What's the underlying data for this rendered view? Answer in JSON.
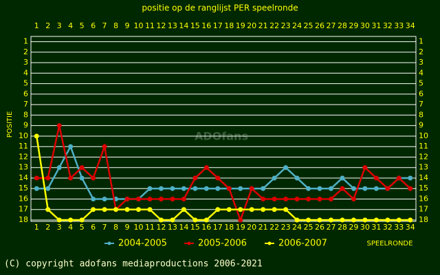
{
  "chart_data": {
    "type": "line",
    "title": "positie op de ranglijst PER speelronde",
    "y_label": "POSITIE",
    "x_label": "SPEELRONDE",
    "watermark": "ADOfans",
    "footer": "(C) copyright adofans mediaproductions 2006-2021",
    "x": [
      1,
      2,
      3,
      4,
      5,
      6,
      7,
      8,
      9,
      10,
      11,
      12,
      13,
      14,
      15,
      16,
      17,
      18,
      19,
      20,
      21,
      22,
      23,
      24,
      25,
      26,
      27,
      28,
      29,
      30,
      31,
      32,
      33,
      34
    ],
    "xlim": [
      0.5,
      34.5
    ],
    "xticks": [
      1,
      2,
      3,
      4,
      5,
      6,
      7,
      8,
      9,
      10,
      11,
      12,
      13,
      14,
      15,
      16,
      17,
      18,
      19,
      20,
      21,
      22,
      23,
      24,
      25,
      26,
      27,
      28,
      29,
      30,
      31,
      32,
      33,
      34
    ],
    "ylim": [
      0.5,
      18
    ],
    "yticks": [
      1,
      2,
      3,
      4,
      5,
      6,
      7,
      8,
      9,
      10,
      11,
      12,
      13,
      14,
      15,
      16,
      17,
      18
    ],
    "y_reversed": true,
    "grid": true,
    "legend": "bottom",
    "series": [
      {
        "name": "2004-2005",
        "color": "#4fb0c6",
        "values": [
          15,
          15,
          13,
          11,
          14,
          16,
          16,
          16,
          16,
          16,
          15,
          15,
          15,
          15,
          15,
          15,
          15,
          15,
          15,
          15,
          15,
          14,
          13,
          14,
          15,
          15,
          15,
          14,
          15,
          15,
          15,
          15,
          14,
          14
        ]
      },
      {
        "name": "2005-2006",
        "color": "#dd0000",
        "values": [
          14,
          14,
          9,
          14,
          13,
          14,
          11,
          17,
          16,
          16,
          16,
          16,
          16,
          16,
          14,
          13,
          14,
          15,
          18,
          15,
          16,
          16,
          16,
          16,
          16,
          16,
          16,
          15,
          16,
          13,
          14,
          15,
          14,
          15
        ]
      },
      {
        "name": "2006-2007",
        "color": "#ffff00",
        "values": [
          10,
          17,
          18,
          18,
          18,
          17,
          17,
          17,
          17,
          17,
          17,
          18,
          18,
          17,
          18,
          18,
          17,
          17,
          17,
          17,
          17,
          17,
          17,
          18,
          18,
          18,
          18,
          18,
          18,
          18,
          18,
          18,
          18,
          18
        ]
      }
    ]
  }
}
